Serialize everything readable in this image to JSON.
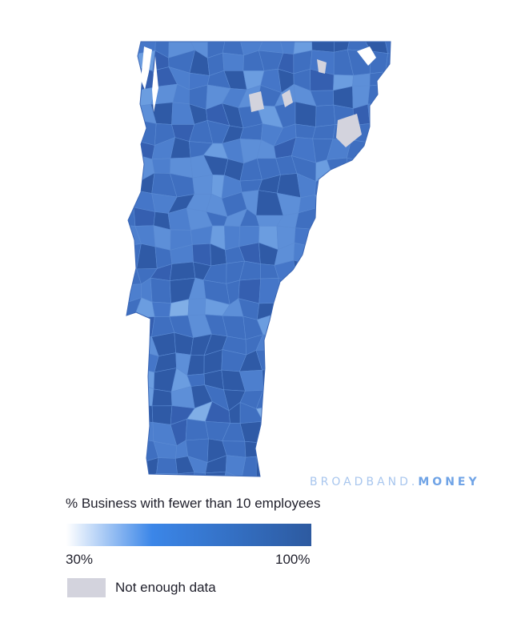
{
  "brand": {
    "part1": "BROADBAND.",
    "part2": "MONEY"
  },
  "legend": {
    "title": "% Business with fewer than 10 employees",
    "min_label": "30%",
    "max_label": "100%",
    "nodata_label": "Not enough data",
    "gradient_colors": [
      "#ffffff",
      "#3b86e8",
      "#2d5aa0"
    ],
    "nodata_color": "#d3d3dd"
  },
  "map": {
    "region": "Vermont",
    "level": "towns",
    "fill_colors": [
      "#3f6fc0",
      "#2f5aa6",
      "#4d7fce",
      "#5d8fd8",
      "#6b9de0",
      "#355fb0",
      "#4576c8",
      "#80aee6",
      "#a9cdf4"
    ]
  }
}
